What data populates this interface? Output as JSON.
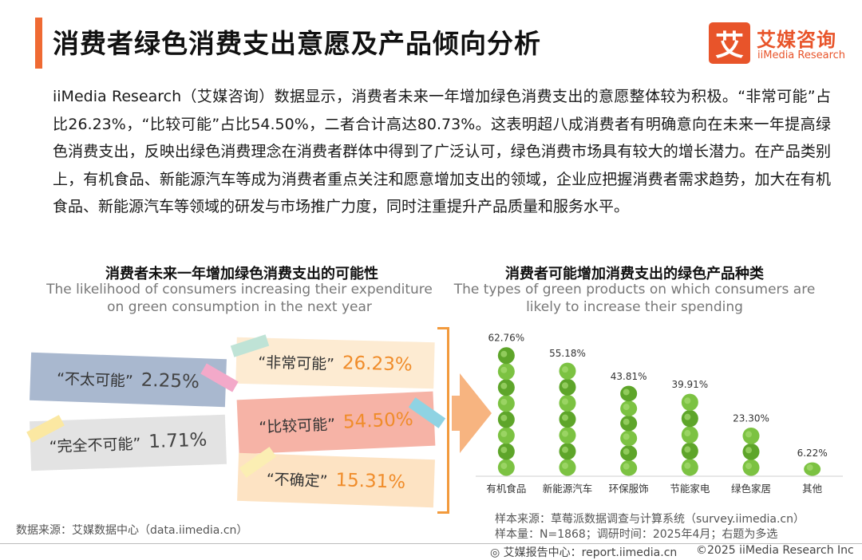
{
  "title": "消费者绿色消费支出意愿及产品倾向分析",
  "logo": {
    "mark": "艾",
    "cn": "艾媒咨询",
    "en": "iiMedia Research"
  },
  "paragraph": "iiMedia Research（艾媒咨询）数据显示，消费者未来一年增加绿色消费支出的意愿整体较为积极。“非常可能”占比26.23%，“比较可能”占比54.50%，二者合计高达80.73%。这表明超八成消费者有明确意向在未来一年提高绿色消费支出，反映出绿色消费理念在消费者群体中得到了广泛认可，绿色消费市场具有较大的增长潜力。在产品类别上，有机食品、新能源汽车等成为消费者重点关注和愿意增加支出的领域，企业应把握消费者需求趋势，加大在有机食品、新能源汽车等领域的研发与市场推广力度，同时注重提升产品质量和服务水平。",
  "left_chart": {
    "title": "消费者未来一年增加绿色消费支出的可能性",
    "subtitle_line1": "The likelihood of consumers increasing their expenditure",
    "subtitle_line2": "on green consumption in the next year",
    "items": [
      {
        "label": "“不太可能”",
        "value": "2.25%"
      },
      {
        "label": "“完全不可能”",
        "value": "1.71%"
      },
      {
        "label": "“非常可能”",
        "value": "26.23%"
      },
      {
        "label": "“比较可能”",
        "value": "54.50%"
      },
      {
        "label": "“不确定”",
        "value": "15.31%"
      }
    ],
    "source": "数据来源：艾媒数据中心（data.iimedia.cn）"
  },
  "right_chart": {
    "title": "消费者可能增加消费支出的绿色产品种类",
    "subtitle_line1": "The types of green products on which consumers are",
    "subtitle_line2": "likely to increase their spending",
    "note_line1": "样本来源：草莓派数据调查与计算系统（survey.iimedia.cn）",
    "note_line2": "样本量：N=1868；调研时间：2025年4月；右题为多选"
  },
  "chart_data": [
    {
      "type": "table",
      "title": "消费者未来一年增加绿色消费支出的可能性",
      "categories": [
        "“非常可能”",
        "“比较可能”",
        "“不确定”",
        "“不太可能”",
        "“完全不可能”"
      ],
      "values": [
        26.23,
        54.5,
        15.31,
        2.25,
        1.71
      ],
      "unit": "%"
    },
    {
      "type": "bar",
      "title": "消费者可能增加消费支出的绿色产品种类",
      "categories": [
        "有机食品",
        "新能源汽车",
        "环保服饰",
        "节能家电",
        "绿色家居",
        "其他"
      ],
      "values": [
        62.76,
        55.18,
        43.81,
        39.91,
        23.3,
        6.22
      ],
      "value_labels": [
        "62.76%",
        "55.18%",
        "43.81%",
        "39.91%",
        "23.30%",
        "6.22%"
      ],
      "ylim": [
        0,
        65
      ],
      "colors": {
        "bar": "#7cc242",
        "bar_dark": "#5ea52a"
      }
    }
  ],
  "footer": {
    "left": "艾媒报告中心：report.iimedia.cn",
    "right": "©2025  iiMedia Research  Inc"
  }
}
